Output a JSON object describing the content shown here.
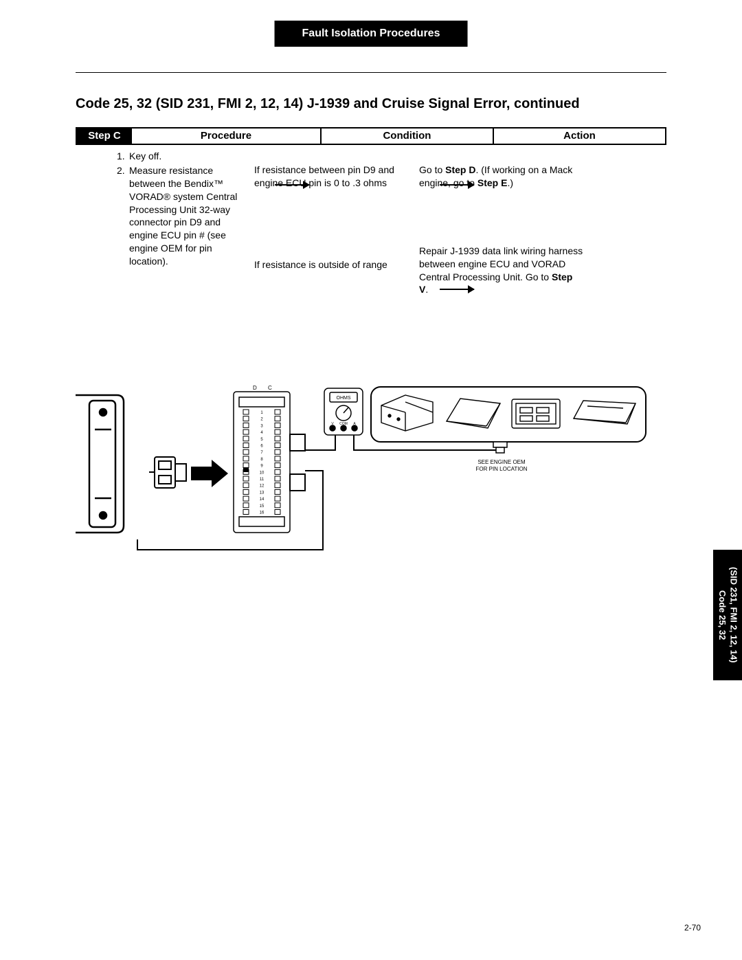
{
  "header": {
    "title": "Fault Isolation Procedures"
  },
  "page_title": "Code 25, 32 (SID 231, FMI 2, 12, 14) J-1939 and Cruise Signal Error, continued",
  "table": {
    "step_label": "Step C",
    "columns": {
      "procedure": "Procedure",
      "condition": "Condition",
      "action": "Action"
    }
  },
  "procedure": {
    "item1_num": "1.",
    "item1_text": "Key off.",
    "item2_num": "2.",
    "item2_text": "Measure resistance between the Bendix™ VORAD® system Central Processing Unit 32-way connector pin D9 and engine ECU pin # (see engine OEM for pin location)."
  },
  "condition": {
    "c1": "If resistance between pin D9 and engine ECU pin is 0 to .3 ohms",
    "c2": "If resistance is outside of range"
  },
  "action": {
    "a1_pre": "Go to ",
    "a1_bold": "Step D",
    "a1_mid": ". (If working on a Mack engine, go to ",
    "a1_bold2": "Step E",
    "a1_post": ".)",
    "a2_pre": "Repair J-1939 data link wiring harness between engine ECU and VORAD Central Processing Unit. Go to ",
    "a2_bold": "Step V",
    "a2_post": "."
  },
  "diagram": {
    "ohms_label": "OHMS",
    "meter_v": "V",
    "meter_com": "COM",
    "meter_a": "A",
    "dc_d": "D",
    "dc_c": "C",
    "note_line1": "SEE ENGINE OEM",
    "note_line2": "FOR PIN LOCATION",
    "pins": [
      "1",
      "2",
      "3",
      "4",
      "5",
      "6",
      "7",
      "8",
      "9",
      "10",
      "11",
      "12",
      "13",
      "14",
      "15",
      "16"
    ]
  },
  "side_tab": {
    "line1": "Code 25, 32",
    "line2": "(SID 231, FMI 2, 12, 14)"
  },
  "page_number": "2-70"
}
